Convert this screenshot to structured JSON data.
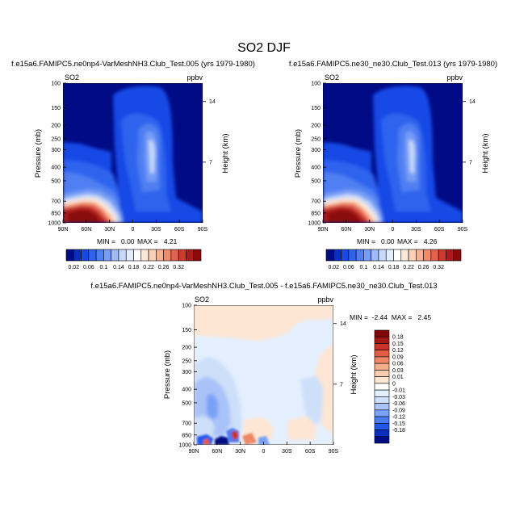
{
  "figure": {
    "title": "SO2 DJF"
  },
  "colors": {
    "abs_scale": [
      "#000b85",
      "#0a2fbf",
      "#1749e6",
      "#2f63ee",
      "#4f7ff2",
      "#759cf6",
      "#9fbaf8",
      "#c6d8fb",
      "#e4edfd",
      "#ffffff",
      "#fde9d9",
      "#fbd0b7",
      "#f7b190",
      "#f08b6a",
      "#e4614b",
      "#cd3a2e",
      "#ad1c1a",
      "#8a0a0c"
    ],
    "diff_scale": [
      "#000b85",
      "#0a2fbf",
      "#2158ec",
      "#4a7cf1",
      "#7aa1f6",
      "#a9c3f9",
      "#cddff9",
      "#e3efff",
      "#ffffff",
      "#fde6d4",
      "#fbcdb0",
      "#f6ad8c",
      "#ee8766",
      "#e15e44",
      "#c9332a",
      "#a51715",
      "#800808"
    ]
  },
  "chart_data": [
    {
      "type": "heatmap",
      "panel": "left",
      "title": "f.e15a6.FAMIPC5.ne0np4-VarMeshNH3.Club_Test.005 (yrs 1979-1980)",
      "variable": "SO2",
      "units": "ppbv",
      "ylabel": "Pressure (mb)",
      "y2label": "Height (km)",
      "xticks": [
        "90N",
        "60N",
        "30N",
        "0",
        "30S",
        "60S",
        "90S"
      ],
      "yticks": [
        "100",
        "150",
        "200",
        "250",
        "300",
        "400",
        "500",
        "700",
        "850",
        "1000"
      ],
      "y2ticks": [
        "14",
        "7"
      ],
      "min_label": "MIN =   0.00",
      "max_label": "MAX =   4.21",
      "colorbar_levels": [
        "0.02",
        "0.06",
        "0.1",
        "0.14",
        "0.18",
        "0.22",
        "0.26",
        "0.32"
      ],
      "ylim": [
        1000,
        100
      ],
      "y_scale": "log"
    },
    {
      "type": "heatmap",
      "panel": "right",
      "title": "f.e15a6.FAMIPC5.ne30_ne30.Club_Test.013 (yrs 1979-1980)",
      "variable": "SO2",
      "units": "ppbv",
      "ylabel": "Pressure (mb)",
      "y2label": "Height (km)",
      "xticks": [
        "90N",
        "60N",
        "30N",
        "0",
        "30S",
        "60S",
        "90S"
      ],
      "yticks": [
        "100",
        "150",
        "200",
        "250",
        "300",
        "400",
        "500",
        "700",
        "850",
        "1000"
      ],
      "y2ticks": [
        "14",
        "7"
      ],
      "min_label": "MIN =   0.00",
      "max_label": "MAX =   4.26",
      "colorbar_levels": [
        "0.02",
        "0.06",
        "0.1",
        "0.14",
        "0.18",
        "0.22",
        "0.26",
        "0.32"
      ],
      "ylim": [
        1000,
        100
      ],
      "y_scale": "log"
    },
    {
      "type": "heatmap",
      "panel": "difference",
      "title": "f.e15a6.FAMIPC5.ne0np4-VarMeshNH3.Club_Test.005 - f.e15a6.FAMIPC5.ne30_ne30.Club_Test.013",
      "variable": "SO2",
      "units": "ppbv",
      "ylabel": "Pressure (mb)",
      "y2label": "Height (km)",
      "xticks": [
        "90N",
        "60N",
        "30N",
        "0",
        "30S",
        "60S",
        "90S"
      ],
      "yticks": [
        "100",
        "150",
        "200",
        "250",
        "300",
        "400",
        "500",
        "700",
        "850",
        "1000"
      ],
      "y2ticks": [
        "14",
        "7"
      ],
      "minmax_label": "MIN =  -2.44  MAX =   2.45",
      "colorbar_levels": [
        "0.18",
        "0.15",
        "0.12",
        "0.09",
        "0.06",
        "0.03",
        "0.01",
        "0",
        "-0.01",
        "-0.03",
        "-0.06",
        "-0.09",
        "-0.12",
        "-0.15",
        "-0.18"
      ],
      "ylim": [
        1000,
        100
      ],
      "y_scale": "log"
    }
  ]
}
